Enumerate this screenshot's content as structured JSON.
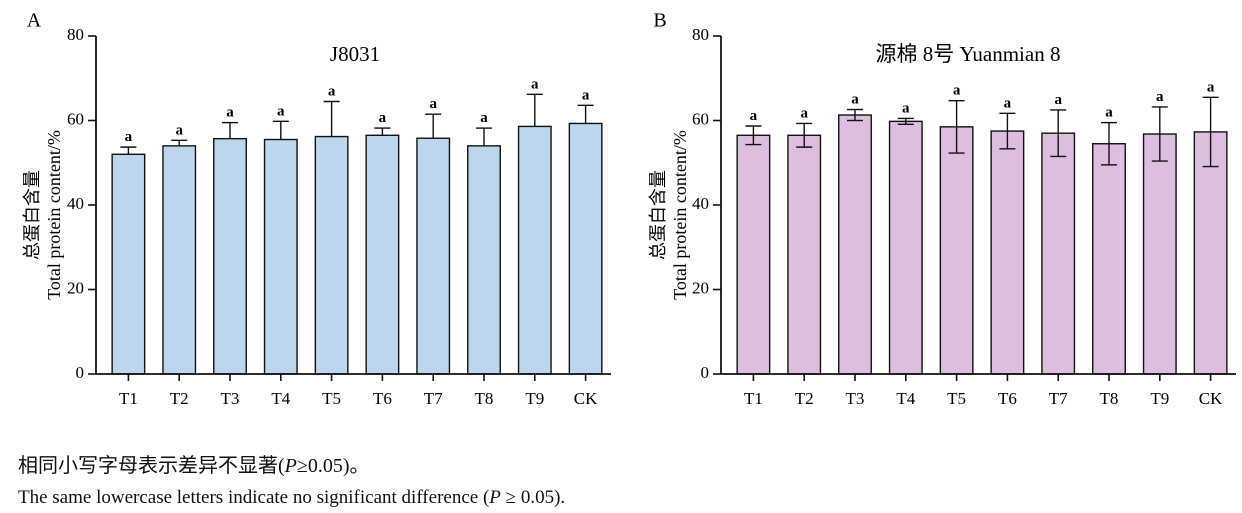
{
  "chart_data": [
    {
      "type": "bar",
      "panel_label": "A",
      "title": "J8031",
      "xlabel": "",
      "ylabel_cn": "总蛋白含量",
      "ylabel_en": "Total protein content/%",
      "ylim": [
        0,
        80
      ],
      "yticks": [
        "0",
        "20",
        "40",
        "60",
        "80"
      ],
      "categories": [
        "T1",
        "T2",
        "T3",
        "T4",
        "T5",
        "T6",
        "T7",
        "T8",
        "T9",
        "CK"
      ],
      "series": [
        {
          "name": "J8031",
          "values": [
            52,
            54,
            55.7,
            55.5,
            56.2,
            56.5,
            55.8,
            54,
            58.6,
            59.3
          ],
          "error_upper": [
            53.7,
            55.3,
            59.5,
            59.8,
            64.5,
            58.2,
            61.5,
            58.2,
            66.2,
            63.6
          ],
          "error_lower": [
            52,
            54,
            55.7,
            55.5,
            56.2,
            56.5,
            55.8,
            54,
            58.6,
            59.3
          ],
          "labels": [
            "a",
            "a",
            "a",
            "a",
            "a",
            "a",
            "a",
            "a",
            "a",
            "a"
          ]
        }
      ],
      "colors": {
        "bar": "#bcd6ee",
        "edge": "#111111"
      }
    },
    {
      "type": "bar",
      "panel_label": "B",
      "title": "源棉 8号 Yuanmian 8",
      "xlabel": "",
      "ylabel_cn": "总蛋白含量",
      "ylabel_en": "Total protein content/%",
      "ylim": [
        0,
        80
      ],
      "yticks": [
        "0",
        "20",
        "40",
        "60",
        "80"
      ],
      "categories": [
        "T1",
        "T2",
        "T3",
        "T4",
        "T5",
        "T6",
        "T7",
        "T8",
        "T9",
        "CK"
      ],
      "series": [
        {
          "name": "Yuanmian 8",
          "values": [
            56.5,
            56.5,
            61.3,
            59.8,
            58.5,
            57.5,
            57,
            54.5,
            56.8,
            57.3
          ],
          "error_upper": [
            58.7,
            59.3,
            62.6,
            60.5,
            64.7,
            61.7,
            62.5,
            59.5,
            63.2,
            65.5
          ],
          "error_lower": [
            54.3,
            53.7,
            60,
            59.1,
            52.3,
            53.3,
            51.5,
            49.5,
            50.4,
            49.1
          ],
          "labels": [
            "a",
            "a",
            "a",
            "a",
            "a",
            "a",
            "a",
            "a",
            "a",
            "a"
          ]
        }
      ],
      "colors": {
        "bar": "#dcbfdf",
        "edge": "#111111"
      }
    }
  ],
  "caption": {
    "cn_text": "相同小写字母表示差异不显著(",
    "cn_p": "P",
    "cn_rest": "≥0.05)。",
    "en_text": "The same lowercase letters indicate no significant difference (",
    "en_p": "P",
    "en_rest": " ≥ 0.05)."
  }
}
